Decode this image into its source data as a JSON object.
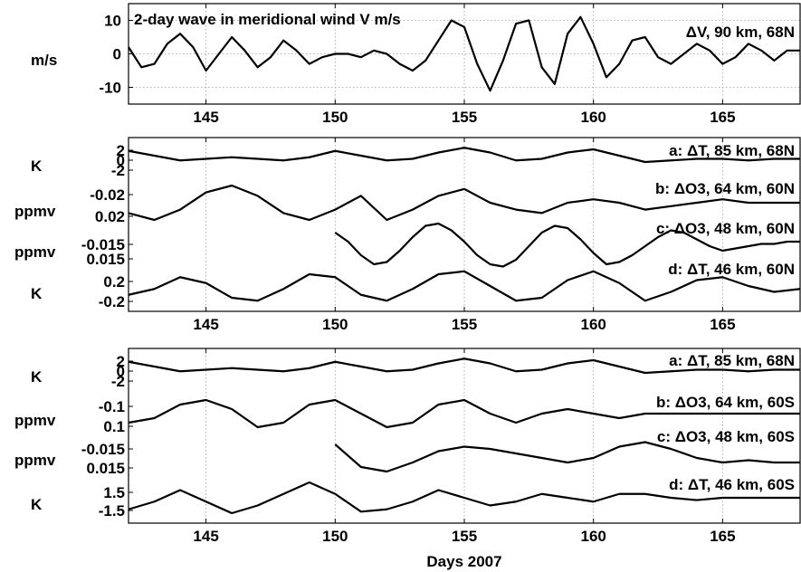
{
  "chart_data": [
    {
      "type": "line",
      "title": "2-day wave in meridional wind V m/s",
      "ylabel": "m/s",
      "xlim": [
        142,
        168
      ],
      "ylim": [
        -15,
        15
      ],
      "xticks": [
        145,
        150,
        155,
        160,
        165
      ],
      "yticks": [
        10,
        0,
        -10
      ],
      "grid": true,
      "series": [
        {
          "name": "ΔV, 90 km, 68N",
          "x": [
            142.0,
            142.5,
            143.0,
            143.5,
            144.0,
            144.5,
            145.0,
            145.5,
            146.0,
            146.5,
            147.0,
            147.5,
            148.0,
            148.5,
            149.0,
            149.5,
            150.0,
            150.5,
            151.0,
            151.5,
            152.0,
            152.5,
            153.0,
            153.5,
            154.0,
            154.5,
            155.0,
            155.5,
            156.0,
            156.5,
            157.0,
            157.5,
            158.0,
            158.5,
            159.0,
            159.5,
            160.0,
            160.5,
            161.0,
            161.5,
            162.0,
            162.5,
            163.0,
            163.5,
            164.0,
            164.5,
            165.0,
            165.5,
            166.0,
            166.5,
            167.0,
            167.5,
            168.0
          ],
          "y": [
            2,
            -4,
            -3,
            3,
            6,
            2,
            -5,
            0,
            5,
            1,
            -4,
            -1,
            4,
            1,
            -3,
            -1,
            0,
            0,
            -1,
            1,
            0,
            -3,
            -5,
            -2,
            4,
            10,
            8,
            -3,
            -11,
            -2,
            9,
            10,
            -4,
            -9,
            6,
            11,
            3,
            -7,
            -3,
            4,
            5,
            -1,
            -3,
            0,
            3,
            1,
            -3,
            -1,
            3,
            1,
            -2,
            1,
            1
          ]
        }
      ]
    },
    {
      "type": "line",
      "xlim": [
        142,
        168
      ],
      "xticks": [
        145,
        150,
        155,
        160,
        165
      ],
      "grid": true,
      "series": [
        {
          "name": "a: ΔT, 85 km, 68N",
          "unit": "K",
          "yticks": [
            "2",
            "0",
            "-2"
          ],
          "x": [
            142,
            143,
            144,
            145,
            146,
            147,
            148,
            149,
            150,
            151,
            152,
            153,
            154,
            155,
            156,
            157,
            158,
            159,
            160,
            161,
            162,
            163,
            164,
            165,
            166,
            167,
            168
          ],
          "y": [
            1.5,
            0,
            -1.5,
            -1,
            -0.5,
            -1,
            -1.5,
            -0.5,
            1.5,
            0,
            -1.5,
            -1,
            1,
            2.5,
            1,
            -1.5,
            -1,
            1,
            2,
            0,
            -2,
            -1.5,
            -1,
            -1,
            -1.5,
            -1,
            -1
          ]
        },
        {
          "name": "b: ΔO3, 64 km, 60N",
          "unit": "ppmv",
          "yticks": [
            "-0.02",
            "0.02"
          ],
          "x": [
            142,
            143,
            144,
            145,
            146,
            147,
            148,
            149,
            150,
            151,
            152,
            153,
            154,
            155,
            156,
            157,
            158,
            159,
            160,
            161,
            162,
            163,
            164,
            165,
            166,
            167,
            168
          ],
          "y": [
            -0.03,
            -0.05,
            -0.02,
            0.03,
            0.05,
            0.02,
            -0.03,
            -0.05,
            -0.02,
            0.02,
            -0.05,
            -0.02,
            0.02,
            0.04,
            0,
            -0.02,
            -0.03,
            0,
            0.01,
            0,
            -0.02,
            -0.01,
            0,
            0.01,
            0,
            0,
            0
          ]
        },
        {
          "name": "c: ΔO3, 48 km, 60N",
          "unit": "ppmv",
          "yticks": [
            "-0.015",
            "0.015"
          ],
          "x": [
            150,
            150.5,
            151,
            151.5,
            152,
            152.5,
            153,
            153.5,
            154,
            154.5,
            155,
            155.5,
            156,
            156.5,
            157,
            157.5,
            158,
            158.5,
            159,
            159.5,
            160,
            160.5,
            161,
            161.5,
            162,
            162.5,
            163,
            163.5,
            164,
            164.5,
            165,
            165.5,
            166,
            166.5,
            167,
            167.5,
            168
          ],
          "y": [
            0.03,
            0.01,
            -0.02,
            -0.04,
            -0.035,
            -0.01,
            0.02,
            0.045,
            0.05,
            0.035,
            0.01,
            -0.02,
            -0.04,
            -0.045,
            -0.03,
            0,
            0.03,
            0.045,
            0.04,
            0.015,
            -0.015,
            -0.04,
            -0.035,
            -0.02,
            0,
            0.02,
            0.035,
            0.03,
            0.015,
            0,
            -0.01,
            -0.005,
            0,
            0.005,
            0.005,
            0.01,
            0.01
          ]
        },
        {
          "name": "d: ΔT, 46 km, 60N",
          "unit": "K",
          "yticks": [
            "0.2",
            "-0.2"
          ],
          "x": [
            142,
            143,
            144,
            145,
            146,
            147,
            148,
            149,
            150,
            151,
            152,
            153,
            154,
            155,
            156,
            157,
            158,
            159,
            160,
            161,
            162,
            163,
            164,
            165,
            166,
            167,
            168
          ],
          "y": [
            -0.15,
            -0.05,
            0.15,
            0.05,
            -0.2,
            -0.25,
            -0.05,
            0.2,
            0.15,
            -0.15,
            -0.25,
            -0.05,
            0.2,
            0.25,
            0,
            -0.25,
            -0.2,
            0.1,
            0.25,
            0.05,
            -0.25,
            -0.1,
            0.1,
            0.15,
            0,
            -0.1,
            -0.05
          ]
        }
      ]
    },
    {
      "type": "line",
      "xlabel": "Days 2007",
      "xlim": [
        142,
        168
      ],
      "xticks": [
        145,
        150,
        155,
        160,
        165
      ],
      "grid": true,
      "series": [
        {
          "name": "a: ΔT, 85 km, 68N",
          "unit": "K",
          "yticks": [
            "2",
            "0",
            "-2"
          ],
          "x": [
            142,
            143,
            144,
            145,
            146,
            147,
            148,
            149,
            150,
            151,
            152,
            153,
            154,
            155,
            156,
            157,
            158,
            159,
            160,
            161,
            162,
            163,
            164,
            165,
            166,
            167,
            168
          ],
          "y": [
            1.5,
            0,
            -1.5,
            -1,
            -0.5,
            -1,
            -1.5,
            -0.5,
            1.5,
            0,
            -1.5,
            -1,
            1,
            2.5,
            1,
            -1.5,
            -1,
            1,
            2,
            0,
            -2,
            -1.5,
            -1,
            -1,
            -1.5,
            -1,
            -1
          ]
        },
        {
          "name": "b: ΔO3, 64 km, 60S",
          "unit": "ppmv",
          "yticks": [
            "-0.1",
            "0.1"
          ],
          "x": [
            142,
            143,
            144,
            145,
            146,
            147,
            148,
            149,
            150,
            151,
            152,
            153,
            154,
            155,
            156,
            157,
            158,
            159,
            160,
            161,
            162,
            163,
            164,
            165,
            166,
            167,
            168
          ],
          "y": [
            -0.1,
            -0.05,
            0.1,
            0.15,
            0.05,
            -0.15,
            -0.1,
            0.1,
            0.15,
            0,
            -0.15,
            -0.1,
            0.1,
            0.15,
            0,
            -0.1,
            0,
            0.05,
            0,
            -0.05,
            0,
            0,
            0,
            0,
            0,
            0,
            0
          ]
        },
        {
          "name": "c: ΔO3, 48 km, 60S",
          "unit": "ppmv",
          "yticks": [
            "-0.015",
            "0.015"
          ],
          "x": [
            150,
            151,
            152,
            153,
            154,
            155,
            156,
            157,
            158,
            159,
            160,
            161,
            162,
            163,
            164,
            165,
            166,
            167,
            168
          ],
          "y": [
            0.02,
            -0.03,
            -0.04,
            -0.02,
            0.005,
            0.015,
            0.01,
            0,
            -0.01,
            -0.02,
            -0.01,
            0.015,
            0.025,
            0.01,
            -0.01,
            -0.02,
            -0.015,
            -0.02,
            -0.02
          ]
        },
        {
          "name": "d: ΔT, 46 km, 60S",
          "unit": "K",
          "yticks": [
            "1.5",
            "-1.5"
          ],
          "x": [
            142,
            143,
            144,
            145,
            146,
            147,
            148,
            149,
            150,
            151,
            152,
            153,
            154,
            155,
            156,
            157,
            158,
            159,
            160,
            161,
            162,
            163,
            164,
            165,
            166,
            167,
            168
          ],
          "y": [
            -1.5,
            -0.5,
            1,
            -0.5,
            -2,
            -1,
            0.5,
            2,
            0.5,
            -1.8,
            -1.5,
            -0.5,
            1,
            0,
            -1,
            -0.5,
            0.5,
            0,
            -0.5,
            0.5,
            0.5,
            0,
            -0.3,
            0,
            0,
            0,
            0
          ]
        }
      ]
    }
  ]
}
